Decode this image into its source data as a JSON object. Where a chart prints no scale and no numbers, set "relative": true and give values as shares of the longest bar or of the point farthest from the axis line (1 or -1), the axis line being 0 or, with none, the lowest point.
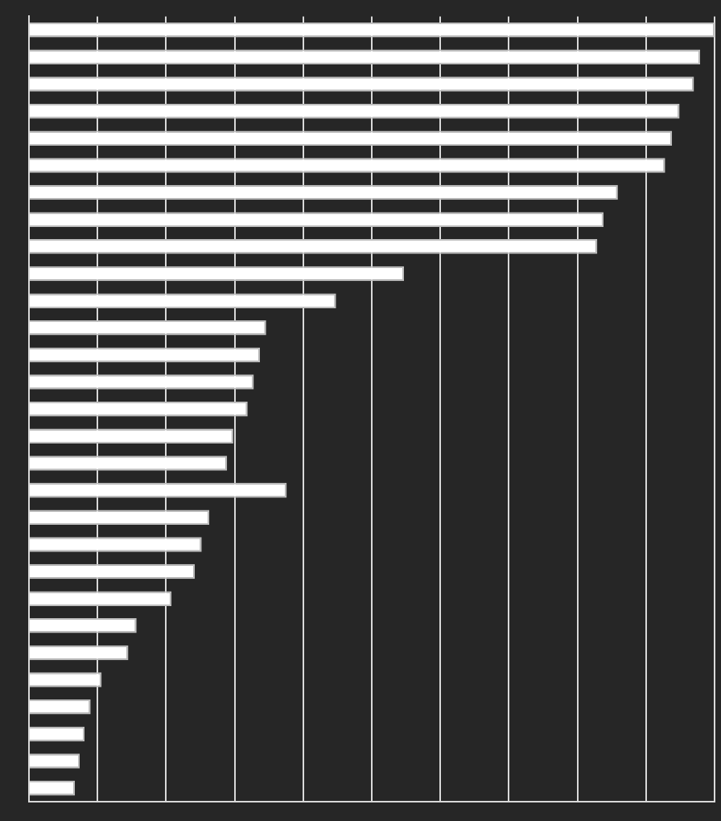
{
  "chart_data": {
    "type": "bar",
    "orientation": "horizontal",
    "relative": true,
    "grid": "x",
    "legend": false,
    "color": "#ffffff",
    "categories": [
      null,
      null,
      null,
      null,
      null,
      null,
      null,
      null,
      null,
      null,
      null,
      null,
      null,
      null,
      null,
      null,
      null,
      null,
      null,
      null,
      null,
      null,
      null,
      null,
      null,
      null,
      null,
      null,
      null
    ],
    "values": [
      1,
      0.979,
      0.97,
      0.949,
      0.938,
      0.928,
      0.859,
      0.838,
      0.829,
      0.547,
      0.448,
      0.346,
      0.337,
      0.328,
      0.319,
      0.298,
      0.289,
      0.376,
      0.263,
      0.252,
      0.242,
      0.208,
      0.157,
      0.145,
      0.106,
      0.09,
      0.081,
      0.074,
      0.067
    ]
  }
}
